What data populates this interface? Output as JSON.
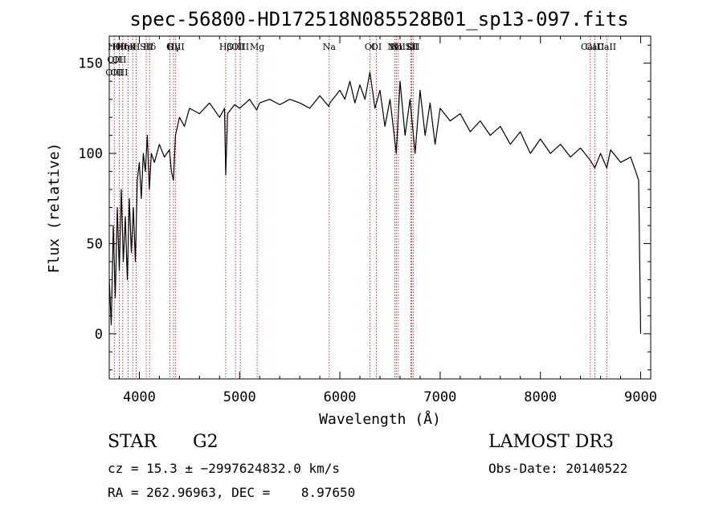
{
  "chart_data": {
    "type": "line",
    "title": "spec-56800-HD172518N085528B01_sp13-097.fits",
    "xlabel": "Wavelength (Å)",
    "ylabel": "Flux (relative)",
    "xlim": [
      3700,
      9100
    ],
    "ylim": [
      -25,
      165
    ],
    "x_ticks": [
      4000,
      5000,
      6000,
      7000,
      8000,
      9000
    ],
    "y_ticks": [
      0,
      50,
      100,
      150
    ],
    "grid": false,
    "series": [
      {
        "values": [
          [
            3700,
            30
          ],
          [
            3720,
            5
          ],
          [
            3740,
            60
          ],
          [
            3760,
            20
          ],
          [
            3780,
            70
          ],
          [
            3800,
            35
          ],
          [
            3820,
            80
          ],
          [
            3840,
            40
          ],
          [
            3860,
            65
          ],
          [
            3880,
            30
          ],
          [
            3900,
            75
          ],
          [
            3920,
            45
          ],
          [
            3940,
            70
          ],
          [
            3960,
            40
          ],
          [
            3980,
            85
          ],
          [
            4000,
            95
          ],
          [
            4020,
            75
          ],
          [
            4040,
            100
          ],
          [
            4060,
            90
          ],
          [
            4080,
            110
          ],
          [
            4100,
            80
          ],
          [
            4120,
            100
          ],
          [
            4150,
            95
          ],
          [
            4200,
            105
          ],
          [
            4250,
            98
          ],
          [
            4300,
            102
          ],
          [
            4320,
            90
          ],
          [
            4340,
            85
          ],
          [
            4360,
            110
          ],
          [
            4400,
            120
          ],
          [
            4450,
            115
          ],
          [
            4500,
            125
          ],
          [
            4600,
            122
          ],
          [
            4700,
            128
          ],
          [
            4800,
            120
          ],
          [
            4850,
            125
          ],
          [
            4862,
            88
          ],
          [
            4880,
            122
          ],
          [
            4950,
            127
          ],
          [
            5000,
            125
          ],
          [
            5100,
            130
          ],
          [
            5170,
            124
          ],
          [
            5200,
            128
          ],
          [
            5300,
            130
          ],
          [
            5400,
            127
          ],
          [
            5500,
            130
          ],
          [
            5600,
            128
          ],
          [
            5700,
            125
          ],
          [
            5800,
            132
          ],
          [
            5890,
            126
          ],
          [
            5900,
            128
          ],
          [
            6000,
            135
          ],
          [
            6050,
            130
          ],
          [
            6100,
            140
          ],
          [
            6150,
            128
          ],
          [
            6200,
            138
          ],
          [
            6250,
            130
          ],
          [
            6300,
            145
          ],
          [
            6350,
            125
          ],
          [
            6400,
            135
          ],
          [
            6450,
            115
          ],
          [
            6500,
            130
          ],
          [
            6563,
            100
          ],
          [
            6600,
            140
          ],
          [
            6650,
            110
          ],
          [
            6700,
            130
          ],
          [
            6750,
            100
          ],
          [
            6800,
            135
          ],
          [
            6850,
            110
          ],
          [
            6900,
            128
          ],
          [
            6950,
            105
          ],
          [
            7000,
            125
          ],
          [
            7100,
            118
          ],
          [
            7200,
            122
          ],
          [
            7300,
            112
          ],
          [
            7400,
            118
          ],
          [
            7500,
            110
          ],
          [
            7600,
            115
          ],
          [
            7700,
            105
          ],
          [
            7800,
            112
          ],
          [
            7900,
            100
          ],
          [
            8000,
            108
          ],
          [
            8100,
            100
          ],
          [
            8200,
            105
          ],
          [
            8300,
            98
          ],
          [
            8400,
            103
          ],
          [
            8500,
            96
          ],
          [
            8542,
            92
          ],
          [
            8600,
            100
          ],
          [
            8662,
            92
          ],
          [
            8700,
            102
          ],
          [
            8800,
            95
          ],
          [
            8900,
            98
          ],
          [
            8950,
            90
          ],
          [
            8980,
            85
          ],
          [
            8995,
            20
          ],
          [
            9000,
            0
          ]
        ]
      }
    ],
    "lines": [
      {
        "x": 3750,
        "labels": [
          "Hθ",
          "OII",
          "OIII"
        ]
      },
      {
        "x": 3800,
        "labels": [
          "Hθ",
          "OII",
          "OIII"
        ]
      },
      {
        "x": 3835,
        "labels": [
          "Hη"
        ]
      },
      {
        "x": 3889,
        "labels": [
          "HeI"
        ]
      },
      {
        "x": 3934,
        "labels": [
          "K"
        ]
      },
      {
        "x": 3969,
        "labels": [
          "H"
        ]
      },
      {
        "x": 4069,
        "labels": [
          "SII"
        ]
      },
      {
        "x": 4102,
        "labels": [
          "Hδ"
        ]
      },
      {
        "x": 4304,
        "labels": [
          "G"
        ]
      },
      {
        "x": 4341,
        "labels": [
          "Hγ"
        ]
      },
      {
        "x": 4363,
        "labels": [
          "OIII"
        ]
      },
      {
        "x": 4861,
        "labels": [
          "Hβ"
        ]
      },
      {
        "x": 4959,
        "labels": [
          "OIII"
        ]
      },
      {
        "x": 5007,
        "labels": [
          "OIII"
        ]
      },
      {
        "x": 5175,
        "labels": [
          "Mg"
        ]
      },
      {
        "x": 5894,
        "labels": [
          "Na"
        ]
      },
      {
        "x": 6300,
        "labels": [
          "OI"
        ]
      },
      {
        "x": 6364,
        "labels": [
          "OI"
        ]
      },
      {
        "x": 6548,
        "labels": [
          "NII"
        ]
      },
      {
        "x": 6563,
        "labels": [
          "Hα"
        ]
      },
      {
        "x": 6583,
        "labels": [
          "NII"
        ]
      },
      {
        "x": 6708,
        "labels": [
          "Li"
        ]
      },
      {
        "x": 6716,
        "labels": [
          "SII"
        ]
      },
      {
        "x": 6731,
        "labels": [
          "SII"
        ]
      },
      {
        "x": 8498,
        "labels": [
          "CaII"
        ]
      },
      {
        "x": 8542,
        "labels": [
          "CaII"
        ]
      },
      {
        "x": 8662,
        "labels": [
          "CaII"
        ]
      }
    ]
  },
  "info": {
    "object_class": "STAR",
    "subclass": "G2",
    "survey": "LAMOST DR3",
    "cz": "cz = 15.3 ± −2997624832.0 km/s",
    "obs_date": "Obs-Date: 20140522",
    "coords": "RA = 262.96963, DEC =    8.97650"
  }
}
